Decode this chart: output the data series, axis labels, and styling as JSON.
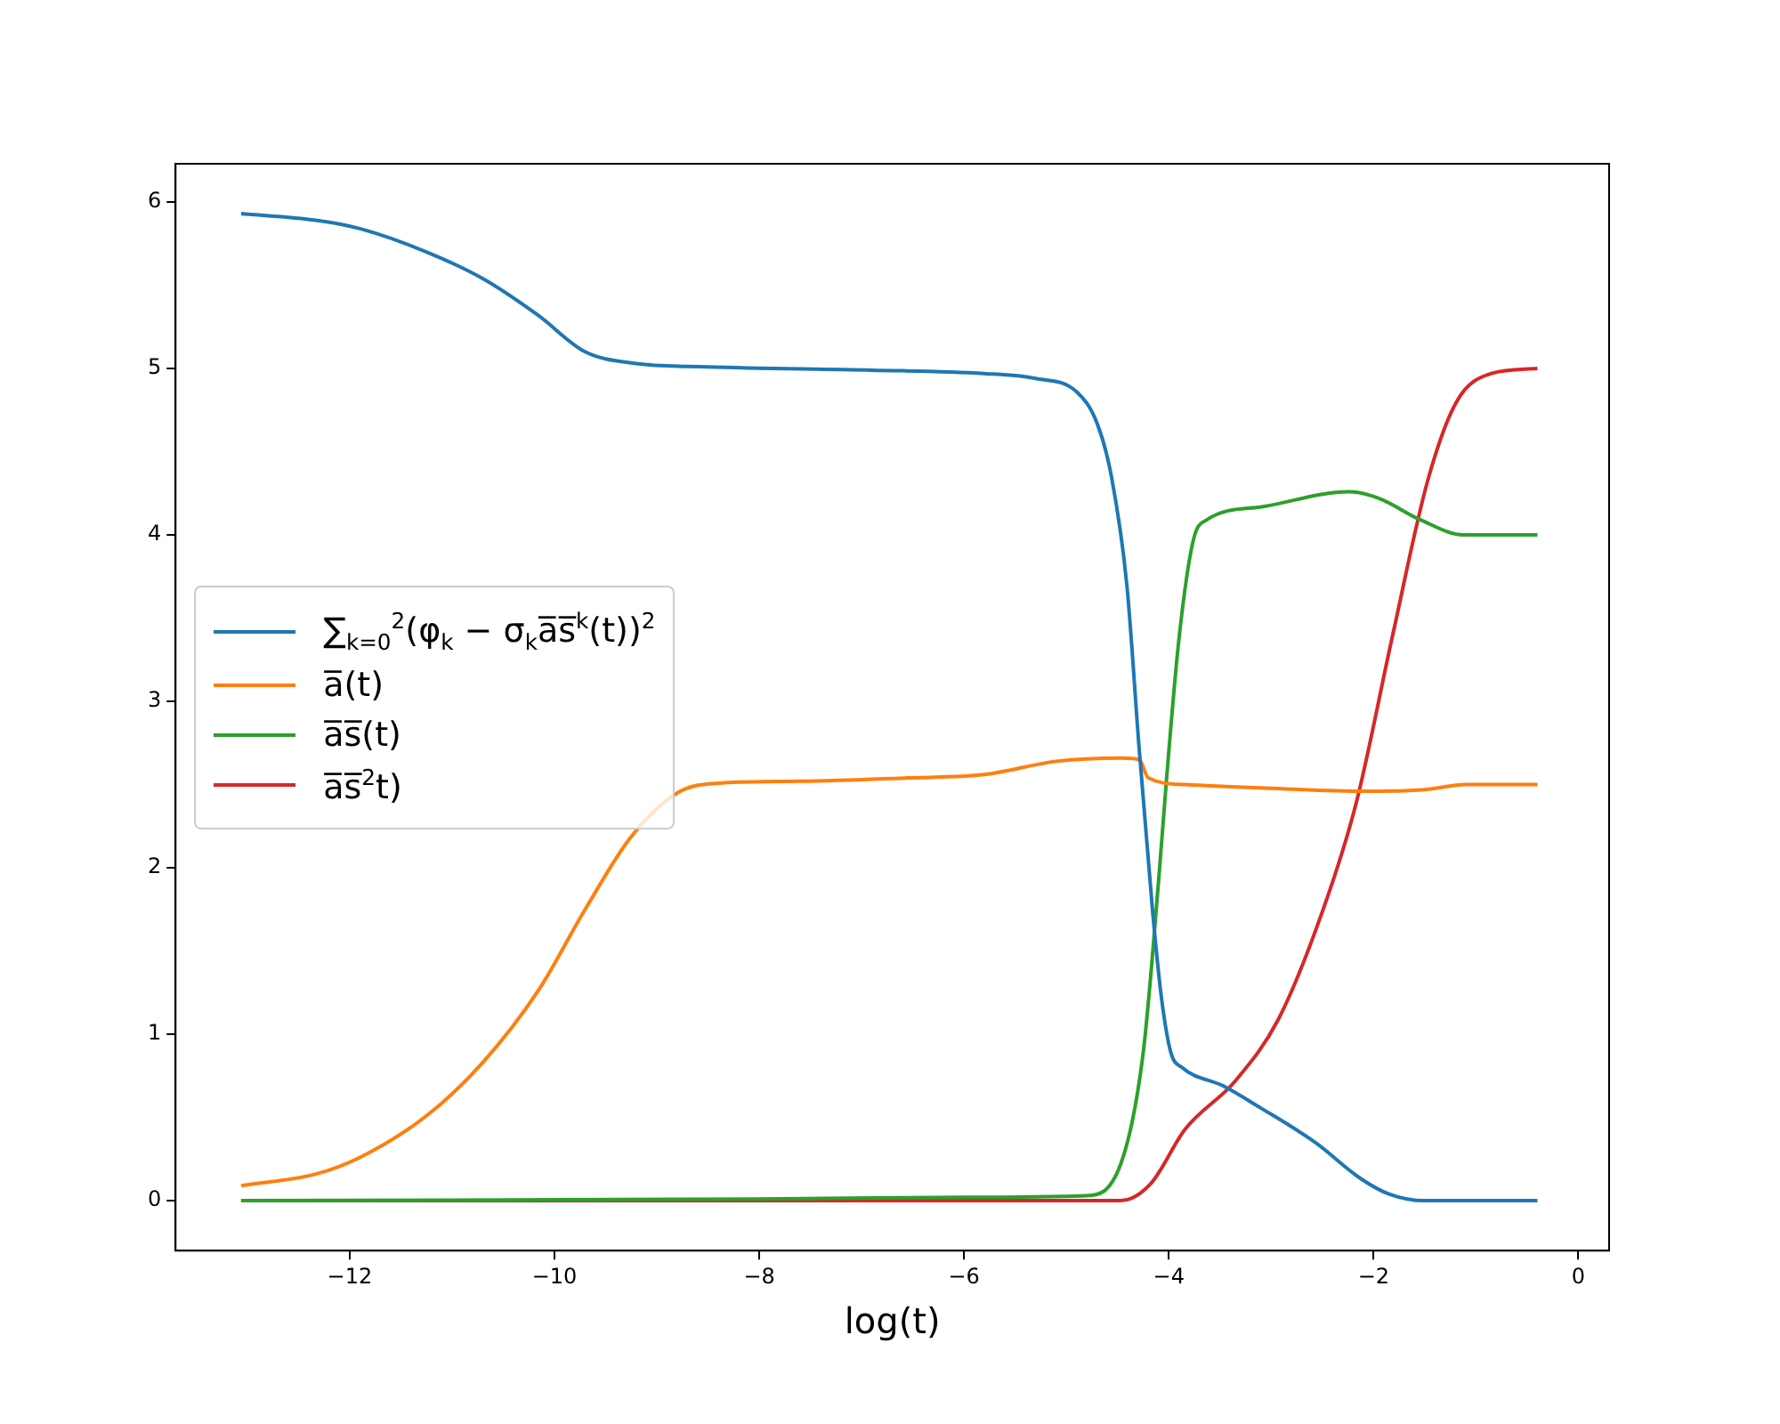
{
  "chart_data": {
    "type": "line",
    "xlabel": "log(t)",
    "xlim": [
      -13.7,
      0.3
    ],
    "ylim": [
      -0.3,
      6.23
    ],
    "xticks": [
      -12,
      -10,
      -8,
      -6,
      -4,
      -2,
      0
    ],
    "yticks": [
      0,
      1,
      2,
      3,
      4,
      5,
      6
    ],
    "grid": false,
    "legend": "center left",
    "marker": "none",
    "line_style": "solid",
    "series": [
      {
        "name": "∑$_{k=0}$$^{2}$(φ$_{k}$ − σ$_{k}$a̅s̅$^{k}$(t))$^{2}$",
        "color": "#1f77b4",
        "x": [
          -13.06,
          -12.33,
          -11.9,
          -11.25,
          -10.7,
          -10.16,
          -9.7,
          -9.2,
          -8.5,
          -6.9,
          -5.8,
          -5.3,
          -4.9,
          -4.7,
          -4.56,
          -4.41,
          -4.29,
          -4.16,
          -4.07,
          -3.98,
          -3.87,
          -3.47,
          -3.11,
          -2.57,
          -2.12,
          -1.85,
          -1.5,
          -0.4
        ],
        "values": [
          5.93,
          5.89,
          5.84,
          5.7,
          5.54,
          5.32,
          5.1,
          5.03,
          5.01,
          4.99,
          4.97,
          4.94,
          4.86,
          4.67,
          4.35,
          3.7,
          2.72,
          1.75,
          1.21,
          0.89,
          0.8,
          0.69,
          0.56,
          0.35,
          0.13,
          0.04,
          0.0,
          0.0
        ]
      },
      {
        "name": "a̅(t)",
        "color": "#ff7f0e",
        "x": [
          -13.06,
          -12.33,
          -11.9,
          -11.25,
          -10.7,
          -10.16,
          -9.7,
          -9.26,
          -8.8,
          -8.36,
          -7.6,
          -6.55,
          -5.8,
          -5.1,
          -4.47,
          -4.29,
          -4.2,
          -3.84,
          -3.11,
          -2.12,
          -1.5,
          -1.1,
          -0.4
        ],
        "values": [
          0.09,
          0.16,
          0.26,
          0.51,
          0.83,
          1.26,
          1.75,
          2.18,
          2.45,
          2.51,
          2.52,
          2.54,
          2.56,
          2.64,
          2.66,
          2.65,
          2.54,
          2.5,
          2.48,
          2.46,
          2.47,
          2.5,
          2.5
        ]
      },
      {
        "name": "a̅s̅(t)",
        "color": "#2ca02c",
        "x": [
          -13.06,
          -8,
          -6,
          -4.81,
          -4.47,
          -4.25,
          -4.1,
          -4.02,
          -3.9,
          -3.76,
          -3.63,
          -3.08,
          -2.24,
          -1.95,
          -1.54,
          -1.12,
          -0.4
        ],
        "values": [
          0,
          0.01,
          0.02,
          0.03,
          0.22,
          0.89,
          1.92,
          2.55,
          3.38,
          3.97,
          4.09,
          4.17,
          4.26,
          4.22,
          4.09,
          4.0,
          4.0
        ]
      },
      {
        "name": "a̅s̅$^{2}$t)",
        "color": "#d62728",
        "x": [
          -13.06,
          -6,
          -4.47,
          -4.18,
          -3.84,
          -3.35,
          -2.93,
          -2.51,
          -2.17,
          -1.82,
          -1.47,
          -1.19,
          -0.85,
          -0.4
        ],
        "values": [
          0,
          0,
          0,
          0.1,
          0.43,
          0.72,
          1.09,
          1.72,
          2.39,
          3.38,
          4.33,
          4.8,
          4.97,
          5.0
        ]
      }
    ]
  }
}
